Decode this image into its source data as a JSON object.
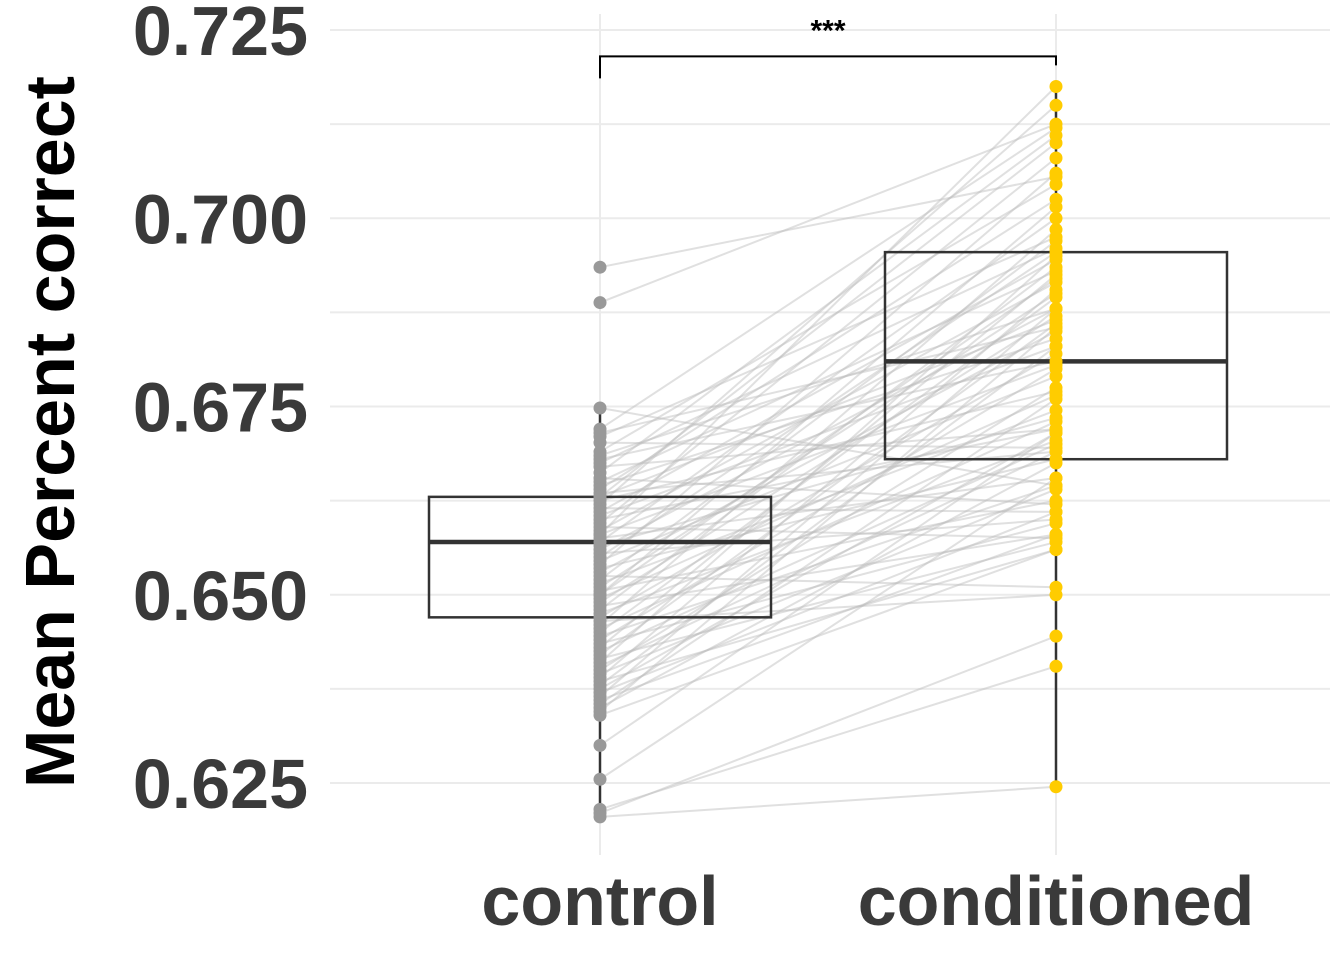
{
  "chart_data": {
    "type": "box",
    "ylabel": "Mean Percent correct",
    "xlabel": "",
    "categories": [
      "control",
      "conditioned"
    ],
    "ylim": [
      0.617,
      0.727
    ],
    "yticks": [
      "0.625",
      "0.650",
      "0.675",
      "0.700",
      "0.725"
    ],
    "grid": true,
    "significance": {
      "label": "***",
      "between": [
        "control",
        "conditioned"
      ],
      "y": 0.7215
    },
    "colors": {
      "control": "#999999",
      "conditioned": "#FFCC00",
      "paired_lines": "#bbbbbb",
      "box": "#333333"
    },
    "series": [
      {
        "group": "control",
        "box": {
          "min": 0.6205,
          "q1": 0.647,
          "median": 0.657,
          "q3": 0.663,
          "max": 0.6745
        },
        "outliers": [
          0.689,
          0.693
        ]
      },
      {
        "group": "conditioned",
        "box": {
          "min": 0.6245,
          "q1": 0.668,
          "median": 0.681,
          "q3": 0.6955,
          "max": 0.7175
        },
        "outliers": []
      }
    ],
    "pairs": [
      [
        0.6935,
        0.7055
      ],
      [
        0.6888,
        0.7125
      ],
      [
        0.6748,
        0.6645
      ],
      [
        0.672,
        0.712
      ],
      [
        0.6715,
        0.6855
      ],
      [
        0.671,
        0.6975
      ],
      [
        0.6702,
        0.6695
      ],
      [
        0.669,
        0.7045
      ],
      [
        0.6685,
        0.688
      ],
      [
        0.668,
        0.681
      ],
      [
        0.6675,
        0.696
      ],
      [
        0.667,
        0.672
      ],
      [
        0.6662,
        0.711
      ],
      [
        0.6655,
        0.662
      ],
      [
        0.665,
        0.693
      ],
      [
        0.6645,
        0.684
      ],
      [
        0.664,
        0.7025
      ],
      [
        0.6635,
        0.669
      ],
      [
        0.663,
        0.6865
      ],
      [
        0.6625,
        0.677
      ],
      [
        0.662,
        0.715
      ],
      [
        0.6615,
        0.661
      ],
      [
        0.661,
        0.6945
      ],
      [
        0.6605,
        0.683
      ],
      [
        0.66,
        0.672
      ],
      [
        0.6595,
        0.708
      ],
      [
        0.659,
        0.6575
      ],
      [
        0.6585,
        0.6915
      ],
      [
        0.658,
        0.6805
      ],
      [
        0.6575,
        0.6655
      ],
      [
        0.657,
        0.7
      ],
      [
        0.6565,
        0.6735
      ],
      [
        0.656,
        0.688
      ],
      [
        0.6555,
        0.66
      ],
      [
        0.655,
        0.6955
      ],
      [
        0.6545,
        0.679
      ],
      [
        0.654,
        0.706
      ],
      [
        0.6535,
        0.668
      ],
      [
        0.653,
        0.685
      ],
      [
        0.6525,
        0.651
      ],
      [
        0.652,
        0.697
      ],
      [
        0.6515,
        0.6745
      ],
      [
        0.651,
        0.69
      ],
      [
        0.6505,
        0.6625
      ],
      [
        0.65,
        0.7015
      ],
      [
        0.6495,
        0.6765
      ],
      [
        0.649,
        0.687
      ],
      [
        0.6485,
        0.658
      ],
      [
        0.648,
        0.6935
      ],
      [
        0.6475,
        0.6705
      ],
      [
        0.647,
        0.682
      ],
      [
        0.6465,
        0.65
      ],
      [
        0.646,
        0.6985
      ],
      [
        0.6455,
        0.673
      ],
      [
        0.645,
        0.6895
      ],
      [
        0.6445,
        0.6645
      ],
      [
        0.644,
        0.68
      ],
      [
        0.6435,
        0.6595
      ],
      [
        0.643,
        0.6925
      ],
      [
        0.6425,
        0.67
      ],
      [
        0.642,
        0.686
      ],
      [
        0.6415,
        0.657
      ],
      [
        0.641,
        0.695
      ],
      [
        0.6405,
        0.669
      ],
      [
        0.64,
        0.6775
      ],
      [
        0.6395,
        0.664
      ],
      [
        0.639,
        0.6905
      ],
      [
        0.6385,
        0.656
      ],
      [
        0.638,
        0.683
      ],
      [
        0.6375,
        0.6715
      ],
      [
        0.637,
        0.661
      ],
      [
        0.6365,
        0.688
      ],
      [
        0.636,
        0.658
      ],
      [
        0.6355,
        0.676
      ],
      [
        0.635,
        0.6675
      ],
      [
        0.6345,
        0.6855
      ],
      [
        0.634,
        0.656
      ],
      [
        0.63,
        0.6715
      ],
      [
        0.6255,
        0.6655
      ],
      [
        0.6215,
        0.6405
      ],
      [
        0.621,
        0.6445
      ],
      [
        0.6205,
        0.6245
      ],
      [
        0.658,
        0.7175
      ],
      [
        0.663,
        0.71
      ],
      [
        0.65,
        0.692
      ]
    ]
  }
}
